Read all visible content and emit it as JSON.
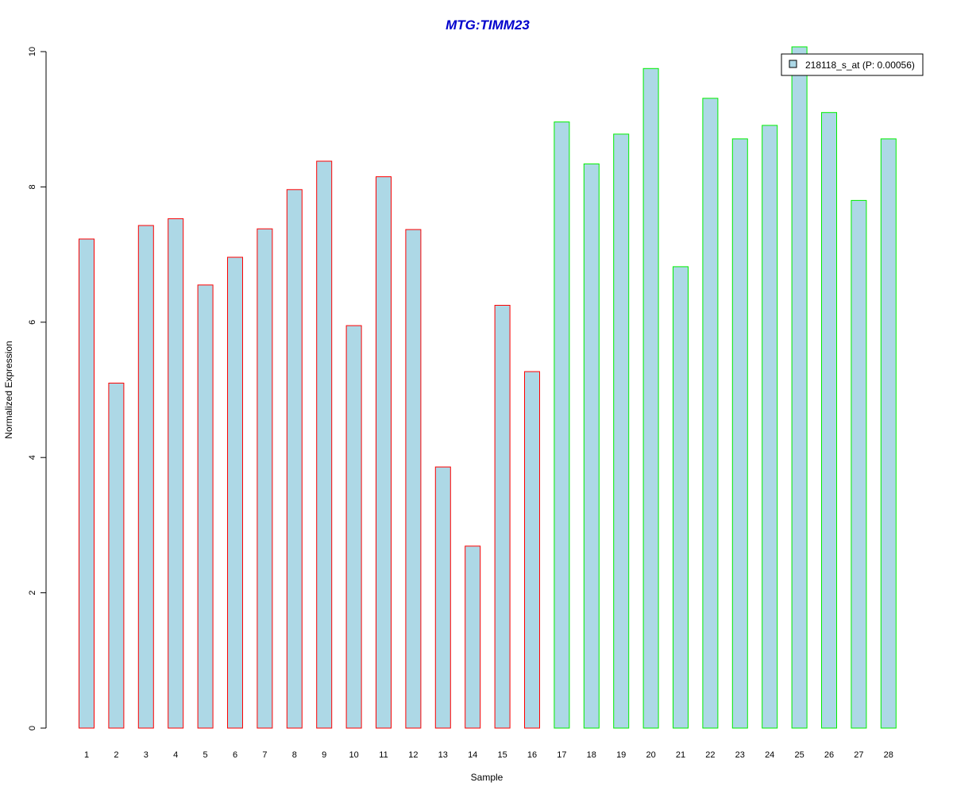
{
  "chart_data": {
    "type": "bar",
    "title": "MTG:TIMM23",
    "xlabel": "Sample",
    "ylabel": "Normalized Expression",
    "ylim": [
      0,
      10
    ],
    "yticks": [
      0,
      2,
      4,
      6,
      8,
      10
    ],
    "grid": false,
    "legend_position": "top-right",
    "categories": [
      "1",
      "2",
      "3",
      "4",
      "5",
      "6",
      "7",
      "8",
      "9",
      "10",
      "11",
      "12",
      "13",
      "14",
      "15",
      "16",
      "17",
      "18",
      "19",
      "20",
      "21",
      "22",
      "23",
      "24",
      "25",
      "26",
      "27",
      "28"
    ],
    "series": [
      {
        "name": "218118_s_at (P: 0.00056)",
        "values": [
          7.23,
          5.1,
          7.43,
          7.53,
          6.55,
          6.96,
          7.38,
          7.96,
          8.38,
          5.95,
          8.15,
          7.37,
          3.86,
          2.69,
          6.25,
          5.27,
          8.96,
          8.34,
          8.78,
          9.75,
          6.82,
          9.31,
          8.71,
          8.91,
          10.07,
          9.1,
          7.8,
          8.71
        ],
        "fill": "#add8e6"
      }
    ],
    "group_border_colors": [
      "#ff0000",
      "#ff0000",
      "#ff0000",
      "#ff0000",
      "#ff0000",
      "#ff0000",
      "#ff0000",
      "#ff0000",
      "#ff0000",
      "#ff0000",
      "#ff0000",
      "#ff0000",
      "#ff0000",
      "#ff0000",
      "#ff0000",
      "#ff0000",
      "#00ee00",
      "#00ee00",
      "#00ee00",
      "#00ee00",
      "#00ee00",
      "#00ee00",
      "#00ee00",
      "#00ee00",
      "#00ee00",
      "#00ee00",
      "#00ee00",
      "#00ee00"
    ],
    "colors": {
      "title": "#0000cc",
      "bar_fill": "#add8e6",
      "group1_border": "#ff0000",
      "group2_border": "#00ee00"
    }
  }
}
